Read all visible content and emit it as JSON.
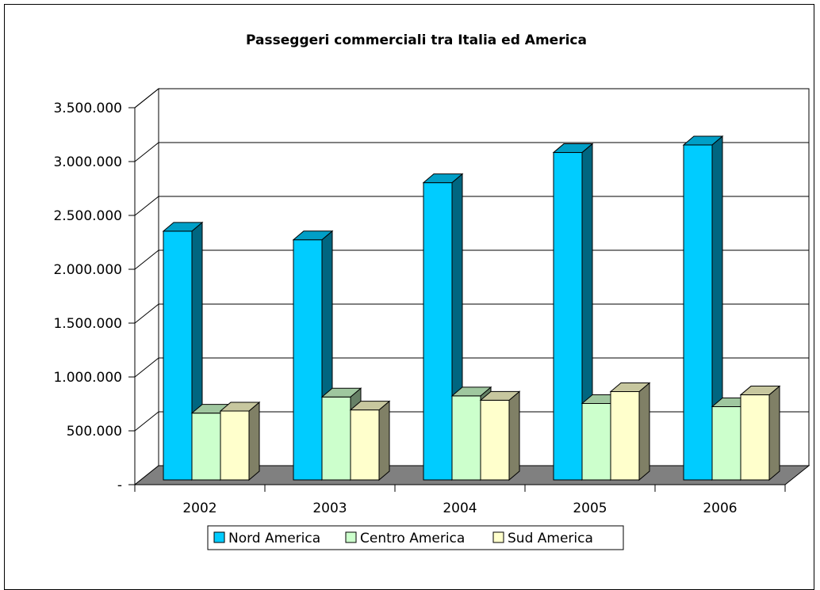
{
  "chart_data": {
    "type": "bar",
    "title": "Passeggeri commerciali tra Italia ed America",
    "categories": [
      "2002",
      "2003",
      "2004",
      "2005",
      "2006"
    ],
    "series": [
      {
        "name": "Nord America",
        "values": [
          2310000,
          2230000,
          2760000,
          3040000,
          3110000
        ]
      },
      {
        "name": "Centro America",
        "values": [
          620000,
          770000,
          780000,
          710000,
          680000
        ]
      },
      {
        "name": "Sud America",
        "values": [
          640000,
          650000,
          740000,
          820000,
          790000
        ]
      }
    ],
    "y_ticks": [
      "-",
      "500.000",
      "1.000.000",
      "1.500.000",
      "2.000.000",
      "2.500.000",
      "3.000.000",
      "3.500.000"
    ],
    "ylim": [
      0,
      3500000
    ],
    "grid": true,
    "legend_position": "bottom",
    "colors": {
      "Nord America": "#00ccff",
      "Centro America": "#ccffcc",
      "Sud America": "#ffffcc",
      "floor": "#808080"
    }
  }
}
